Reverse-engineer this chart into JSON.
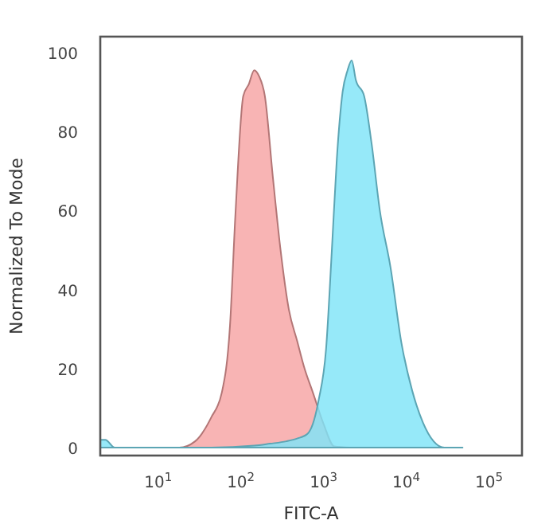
{
  "chart_data": {
    "type": "area",
    "xlabel": "FITC-A",
    "ylabel": "Normalized To Mode",
    "log": "x",
    "grid": false,
    "xlim": [
      2,
      250000
    ],
    "xticks": [
      {
        "value": 10,
        "label": "10$^{1}$"
      },
      {
        "value": 100,
        "label": "10$^{2}$"
      },
      {
        "value": 1000,
        "label": "10$^{3}$"
      },
      {
        "value": 10000,
        "label": "10$^{4}$"
      },
      {
        "value": 100000,
        "label": "10$^{5}$"
      }
    ],
    "ylim": [
      -2,
      104
    ],
    "yticks": [
      0,
      20,
      40,
      60,
      80,
      100
    ],
    "series": [
      {
        "color": "#f7a3a3",
        "x": [
          10,
          18,
          28,
          44,
          59,
          74,
          86,
          107,
          125,
          145,
          166,
          195,
          245,
          302,
          380,
          479,
          589,
          741,
          1000,
          1349,
          2089
        ],
        "values": [
          0,
          0,
          1.6,
          7.7,
          14,
          31,
          59,
          89,
          92,
          95.5,
          94,
          89,
          68,
          50,
          35,
          27,
          20,
          14,
          6,
          0.3,
          0
        ]
      },
      {
        "color": "#7fe4f8",
        "x": [
          2,
          2.3,
          3,
          10,
          44,
          145,
          224,
          355,
          479,
          646,
          871,
          1072,
          1259,
          1445,
          1698,
          1950,
          2188,
          2455,
          3090,
          3802,
          4786,
          6457,
          8710,
          11749,
          15849,
          21380,
          28840,
          47863
        ],
        "values": [
          2,
          2,
          0,
          0,
          0,
          0.5,
          1,
          1.6,
          2.3,
          3.6,
          12,
          25,
          50,
          73,
          90,
          95.5,
          98,
          93,
          89,
          77,
          60,
          45.5,
          26.6,
          14.5,
          6.4,
          1.6,
          0,
          0
        ]
      }
    ]
  }
}
